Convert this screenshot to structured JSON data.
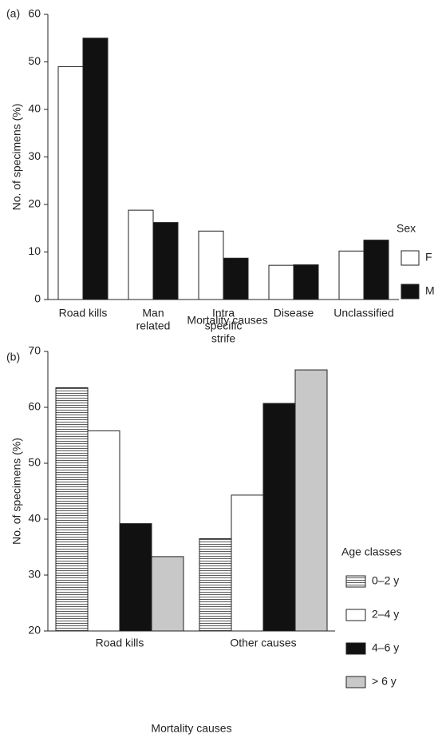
{
  "chart_data": [
    {
      "type": "bar",
      "label": "(a)",
      "xlabel": "Mortality causes",
      "ylabel": "No. of specimens (%)",
      "categories": [
        [
          "Road kills"
        ],
        [
          "Man",
          "related"
        ],
        [
          "Intra",
          "specific",
          "strife"
        ],
        [
          "Disease"
        ],
        [
          "Unclassified"
        ]
      ],
      "series": [
        {
          "name": "F",
          "color": "#ffffff",
          "values": [
            49,
            18.8,
            14.4,
            7.2,
            10.2
          ]
        },
        {
          "name": "M",
          "color": "#111111",
          "values": [
            55,
            16.2,
            8.7,
            7.3,
            12.5
          ]
        }
      ],
      "ylim": [
        0,
        60
      ],
      "yticks": [
        0,
        10,
        20,
        30,
        40,
        50,
        60
      ],
      "legend_title": "Sex"
    },
    {
      "type": "bar",
      "label": "(b)",
      "xlabel": "Mortality causes",
      "ylabel": "No. of specimens (%)",
      "categories": [
        [
          "Road kills"
        ],
        [
          "Other causes"
        ]
      ],
      "series": [
        {
          "name": "0–2 y",
          "color": "#ffffff",
          "pattern": "horizontal-lines",
          "values": [
            63.5,
            36.5
          ]
        },
        {
          "name": "2–4 y",
          "color": "#ffffff",
          "values": [
            55.8,
            44.3
          ]
        },
        {
          "name": "4–6 y",
          "color": "#111111",
          "values": [
            39.2,
            60.7
          ]
        },
        {
          "name": "> 6 y",
          "color": "#c8c8c8",
          "values": [
            33.3,
            66.7
          ]
        }
      ],
      "ylim": [
        20,
        70
      ],
      "yticks": [
        20,
        30,
        40,
        50,
        60,
        70
      ],
      "legend_title": "Age classes"
    }
  ]
}
